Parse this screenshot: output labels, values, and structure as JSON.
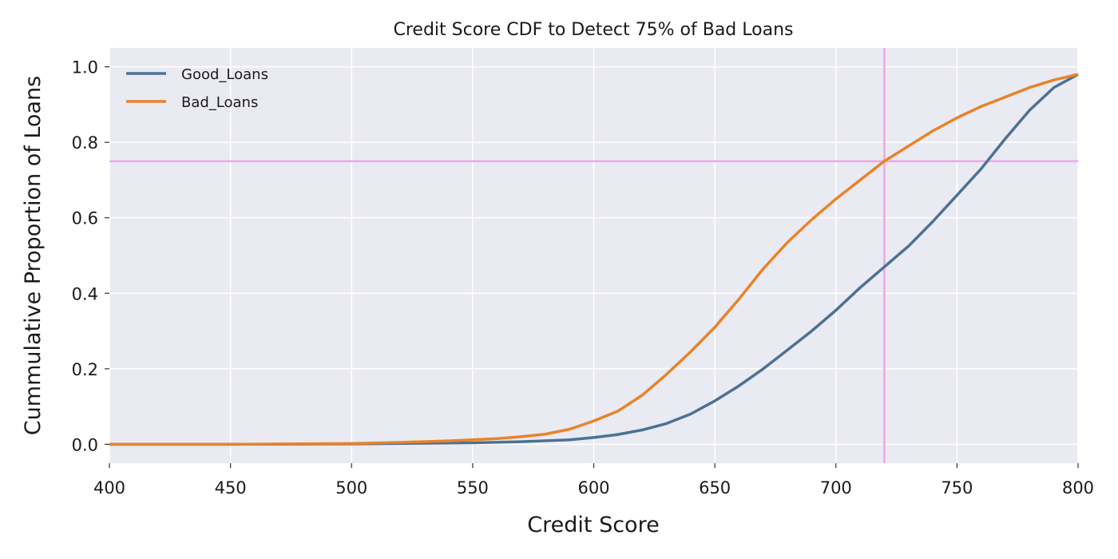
{
  "chart_data": {
    "type": "line",
    "title": "Credit Score CDF to Detect 75% of Bad Loans",
    "xlabel": "Credit Score",
    "ylabel": "Cummulative Proportion of Loans",
    "xlim": [
      400,
      800
    ],
    "ylim": [
      -0.05,
      1.05
    ],
    "xticks": [
      400,
      450,
      500,
      550,
      600,
      650,
      700,
      750,
      800
    ],
    "yticks": [
      0.0,
      0.2,
      0.4,
      0.6,
      0.8,
      1.0
    ],
    "grid": true,
    "legend_position": "top-left",
    "series": [
      {
        "name": "Good_Loans",
        "color": "#4c7193",
        "x": [
          400,
          450,
          500,
          550,
          570,
          590,
          600,
          610,
          620,
          630,
          640,
          650,
          660,
          670,
          680,
          690,
          700,
          710,
          720,
          730,
          740,
          750,
          760,
          770,
          780,
          790,
          800
        ],
        "y": [
          0.0,
          0.0,
          0.001,
          0.004,
          0.007,
          0.012,
          0.018,
          0.026,
          0.038,
          0.055,
          0.08,
          0.115,
          0.155,
          0.2,
          0.25,
          0.3,
          0.355,
          0.415,
          0.47,
          0.525,
          0.59,
          0.66,
          0.73,
          0.81,
          0.885,
          0.945,
          0.98
        ]
      },
      {
        "name": "Bad_Loans",
        "color": "#e8832a",
        "x": [
          400,
          450,
          500,
          520,
          540,
          560,
          570,
          580,
          590,
          600,
          610,
          620,
          630,
          640,
          650,
          660,
          670,
          680,
          690,
          700,
          710,
          720,
          730,
          740,
          750,
          760,
          770,
          780,
          790,
          800
        ],
        "y": [
          0.0,
          0.0,
          0.002,
          0.005,
          0.009,
          0.015,
          0.02,
          0.027,
          0.04,
          0.062,
          0.088,
          0.13,
          0.185,
          0.245,
          0.31,
          0.385,
          0.465,
          0.535,
          0.595,
          0.65,
          0.7,
          0.75,
          0.79,
          0.83,
          0.865,
          0.895,
          0.92,
          0.945,
          0.965,
          0.98
        ]
      }
    ],
    "reference_lines": [
      {
        "orientation": "horizontal",
        "value": 0.75,
        "color": "#f0a6e8"
      },
      {
        "orientation": "vertical",
        "value": 720,
        "color": "#f0a6e8"
      }
    ],
    "colors": {
      "plot_background": "#eaeaf2",
      "grid": "#ffffff"
    }
  }
}
